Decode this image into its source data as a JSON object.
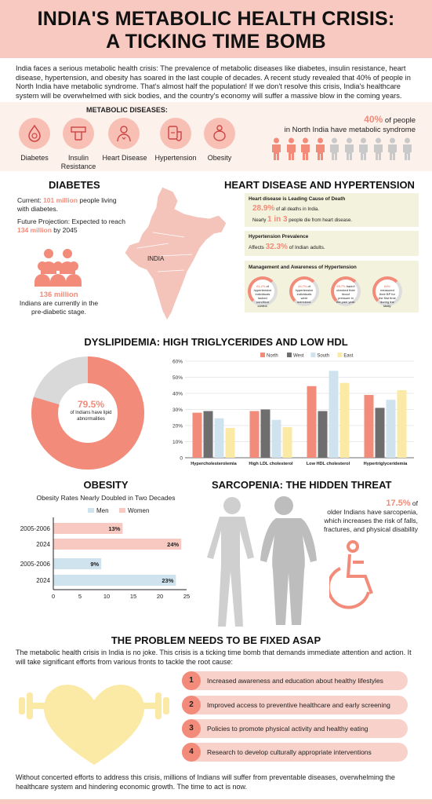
{
  "header": {
    "title_line1": "INDIA'S METABOLIC HEALTH CRISIS:",
    "title_line2": "A TICKING TIME BOMB"
  },
  "intro": "India faces a serious metabolic health crisis: The prevalence of metabolic diseases like diabetes, insulin resistance, heart disease, hypertension, and obesity has soared in the last couple of decades. A recent study revealed that 40% of people in North India have metabolic syndrome. That's almost half the population! If we don't resolve this crisis, India's healthcare system will be overwhelmed with sick bodies, and the country's economy will suffer a massive blow in the coming years.",
  "metabolic": {
    "title": "METABOLIC DISEASES:",
    "diseases": [
      {
        "label": "Diabetes",
        "icon": "diabetes-icon"
      },
      {
        "label": "Insulin Resistance",
        "icon": "insulin-pen-icon"
      },
      {
        "label": "Heart Disease",
        "icon": "heart-disease-icon"
      },
      {
        "label": "Hypertension",
        "icon": "blood-pressure-icon"
      },
      {
        "label": "Obesity",
        "icon": "obesity-icon"
      }
    ],
    "stat_pct": "40%",
    "stat_text1": " of people",
    "stat_text2": "in North India have metabolic syndrome",
    "people_filled": 4,
    "people_total": 10,
    "colors": {
      "filled": "#f28b7a",
      "empty": "#c9c9c9"
    }
  },
  "diabetes": {
    "title": "DIABETES",
    "current_prefix": "Current: ",
    "current_value": "101 million",
    "current_suffix": " people living with diabetes.",
    "proj_prefix": "Future Projection: Expected to reach ",
    "proj_value": "134 million",
    "proj_suffix": " by 2045",
    "map_label": "INDIA",
    "prediabetic_value": "136 million",
    "prediabetic_text": "Indians are currently in the pre-diabetic stage."
  },
  "heart": {
    "title": "HEART DISEASE AND HYPERTENSION",
    "box1_title": "Heart disease is Leading Cause of Death",
    "box1_pct": "28.9%",
    "box1_pct_text": " of all deaths in India.",
    "box1_line2_prefix": "Nearly ",
    "box1_line2_value": "1 in 3",
    "box1_line2_suffix": " people die from heart disease.",
    "box2_title": "Hypertension Prevalence",
    "box2_prefix": "Affects ",
    "box2_value": "32.3%",
    "box2_suffix": " of Indian adults.",
    "box3_title": "Management and Awareness of Hypertension",
    "rings": [
      {
        "pct": "61.2%",
        "text": " of hypertensive individuals lacked condition control."
      },
      {
        "pct": "44.7%",
        "text": " of hypertensive individuals were untreated."
      },
      {
        "pct": "65.7%",
        "text": " hadn't checked their blood pressure in the past year."
      },
      {
        "pct": "64%",
        "text": " measured their BP for the first time during the study."
      }
    ]
  },
  "dyslipidemia": {
    "title": "DYSLIPIDEMIA: HIGH TRIGLYCERIDES AND LOW HDL",
    "donut_pct": "79.5%",
    "donut_text": "of Indians have lipid abnormalities",
    "donut_value": 79.5,
    "colors": {
      "main": "#f28b7a",
      "rest": "#d9d9d9"
    }
  },
  "chart_data": [
    {
      "type": "bar",
      "categories": [
        "Hypercholesterolemia",
        "High LDL cholesterol",
        "Low HDL cholesterol",
        "Hypertriglyceridemia"
      ],
      "series": [
        {
          "name": "North",
          "color": "#f28b7a",
          "values": [
            28,
            29,
            44.5,
            39
          ]
        },
        {
          "name": "West",
          "color": "#6e6e6e",
          "values": [
            29,
            30,
            29,
            31
          ]
        },
        {
          "name": "South",
          "color": "#cfe3ef",
          "values": [
            24.5,
            23.5,
            54,
            36
          ]
        },
        {
          "name": "East",
          "color": "#fbe9a6",
          "values": [
            18.5,
            19,
            46.5,
            42
          ]
        }
      ],
      "yticks": [
        "0",
        "10%",
        "20%",
        "30%",
        "40%",
        "50%",
        "60%"
      ],
      "ylim": [
        0,
        60
      ],
      "legend": "top"
    },
    {
      "type": "bar",
      "orientation": "horizontal",
      "title": "Obesity Rates Nearly Doubled in Two Decades",
      "series_names": [
        "Men",
        "Women"
      ],
      "rows": [
        {
          "label": "2005-2006",
          "series": "Women",
          "value": 13,
          "value_label": "13%"
        },
        {
          "label": "2024",
          "series": "Women",
          "value": 24,
          "value_label": "24%"
        },
        {
          "label": "2005-2006",
          "series": "Men",
          "value": 9,
          "value_label": "9%"
        },
        {
          "label": "2024",
          "series": "Men",
          "value": 23,
          "value_label": "23%"
        }
      ],
      "xticks": [
        "0",
        "5",
        "10",
        "15",
        "20",
        "25"
      ],
      "xlim": [
        0,
        25
      ],
      "colors": {
        "Men": "#cfe3ef",
        "Women": "#f8c9c0"
      },
      "legend": "top"
    }
  ],
  "obesity": {
    "title": "OBESITY",
    "subtitle": "Obesity Rates Nearly Doubled in Two Decades"
  },
  "sarcopenia": {
    "title": "SARCOPENIA: THE HIDDEN THREAT",
    "pct": "17.5%",
    "pct_suffix": " of",
    "text": "older Indians have sarcopenia, which increases the risk of falls, fractures, and physical disability"
  },
  "problem": {
    "title": "THE PROBLEM NEEDS TO BE FIXED ASAP",
    "text": "The metabolic health crisis in India is no joke. This crisis is a ticking time bomb that demands immediate attention and action. It will take significant efforts from various fronts to tackle the root cause:",
    "steps": [
      {
        "num": "1",
        "text": "Increased awareness and education about healthy lifestyles"
      },
      {
        "num": "2",
        "text": "Improved access to preventive healthcare and early screening"
      },
      {
        "num": "3",
        "text": "Policies to promote physical activity and healthy eating"
      },
      {
        "num": "4",
        "text": "Research to develop culturally appropriate interventions"
      }
    ],
    "closing": "Without concerted efforts to address this crisis, millions of Indians will suffer from preventable diseases, overwhelming the healthcare system and hindering economic growth. The time to act is now."
  }
}
